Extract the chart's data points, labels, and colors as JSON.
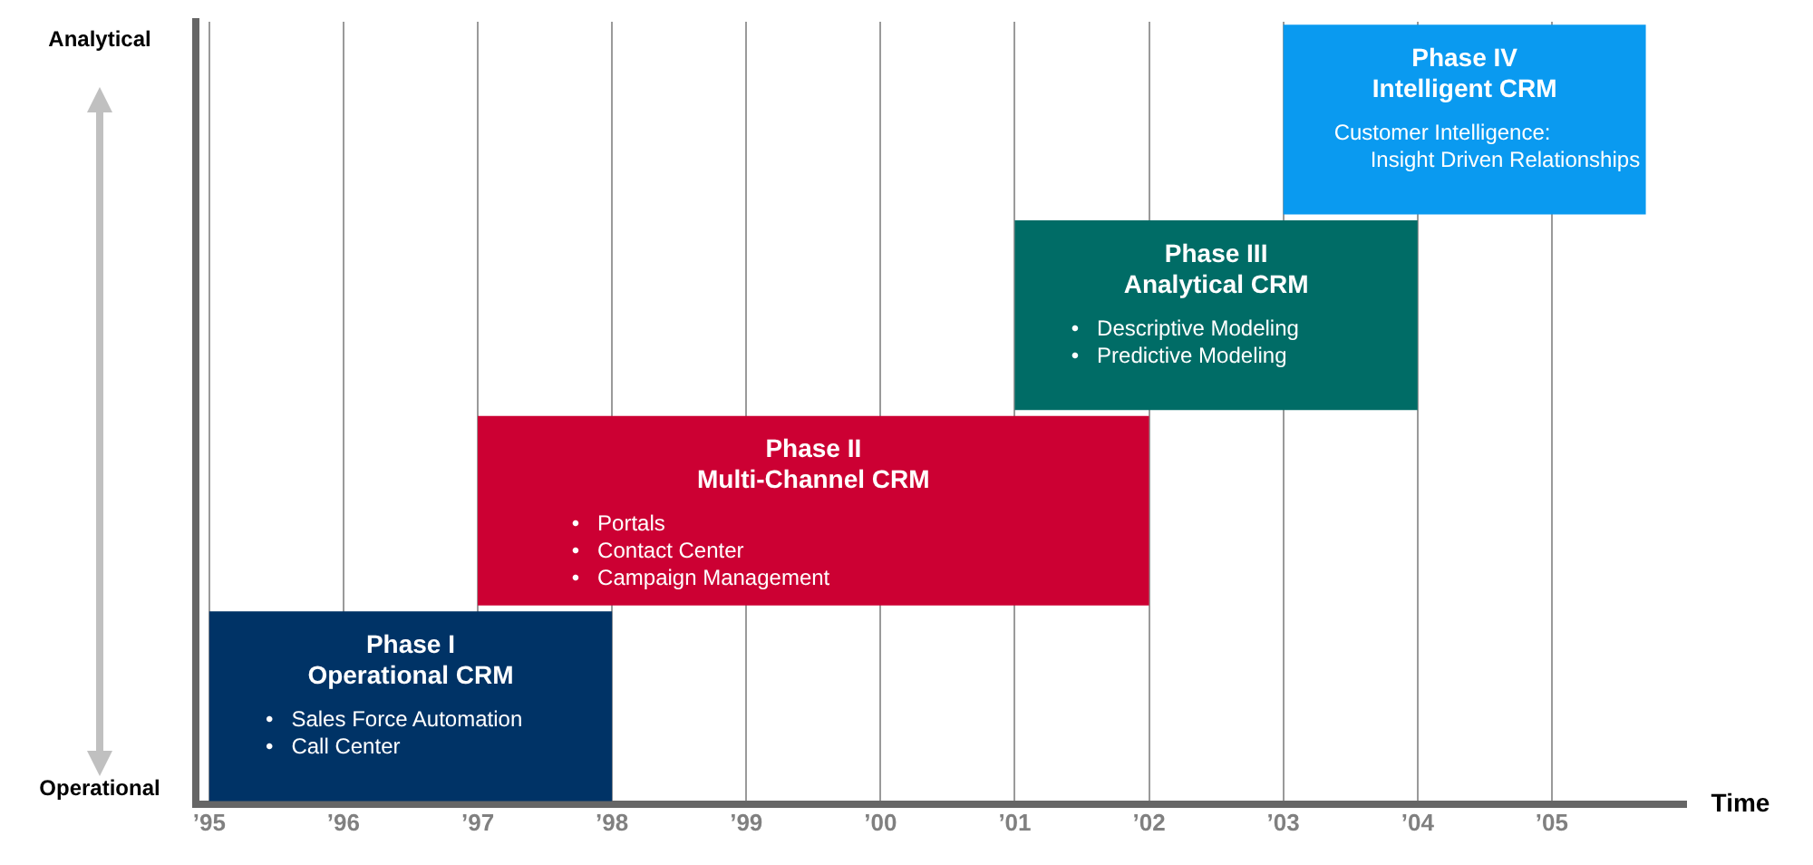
{
  "chart_data": {
    "type": "bar",
    "orientation": "horizontal",
    "categories": [
      null,
      null,
      null,
      null
    ],
    "base": [
      2003,
      2001,
      1997,
      1995
    ],
    "values": [
      2.7,
      3,
      5,
      3
    ],
    "colors": [
      "#0a9af0",
      "#006c66",
      "#cc0033",
      "#003366"
    ],
    "value_labels": [
      "Phase IV\nIntelligent CRM\nCustomer Intelligence:\n      Insight Driven Relationships",
      "Phase III\nAnalytical CRM\n•   Descriptive Modeling\n•   Predictive Modeling",
      "Phase II\nMulti-Channel CRM\n•   Portals\n•   Contact Center\n•   Campaign Management",
      "Phase I\nOperational CRM\n•   Sales Force Automation\n•   Call Center"
    ],
    "xlabel": "Time",
    "xlim": [
      1994.9,
      2006
    ],
    "xticks": [
      {
        "value": 1995,
        "label": "’95"
      },
      {
        "value": 1996,
        "label": "’96"
      },
      {
        "value": 1997,
        "label": "’97"
      },
      {
        "value": 1998,
        "label": "’98"
      },
      {
        "value": 1999,
        "label": "’99"
      },
      {
        "value": 2000,
        "label": "’00"
      },
      {
        "value": 2001,
        "label": "’01"
      },
      {
        "value": 2002,
        "label": "’02"
      },
      {
        "value": 2003,
        "label": "’03"
      },
      {
        "value": 2004,
        "label": "’04"
      },
      {
        "value": 2005,
        "label": "’05"
      }
    ],
    "annotations": [
      "Analytical",
      "Operational"
    ],
    "grid": "x",
    "legend": false
  }
}
